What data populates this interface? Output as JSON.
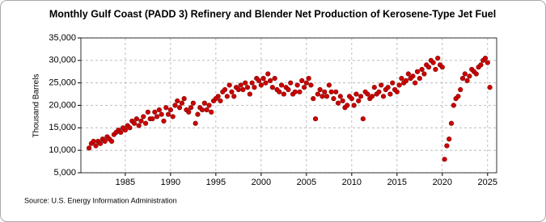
{
  "chart_data": {
    "type": "scatter",
    "title": "Monthly Gulf Coast (PADD 3) Refinery and Blender Net Production of Kerosene-Type Jet Fuel",
    "y_label": "Thousand Barrels",
    "source": "Source: U.S. Energy Information Administration",
    "xlim": [
      1980.1,
      2026
    ],
    "xticks": [
      1985,
      1990,
      1995,
      2000,
      2005,
      2010,
      2015,
      2020,
      2025
    ],
    "ylim": [
      5000,
      35000
    ],
    "yticks": [
      {
        "value": 5000,
        "label": "5,000"
      },
      {
        "value": 10000,
        "label": "10,000"
      },
      {
        "value": 15000,
        "label": "15,000"
      },
      {
        "value": 20000,
        "label": "20,000"
      },
      {
        "value": 25000,
        "label": "25,000"
      },
      {
        "value": 30000,
        "label": "30,000"
      },
      {
        "value": 35000,
        "label": "35,000"
      }
    ],
    "grid": true,
    "series": [
      {
        "color": "#cc0000",
        "x": [
          1981,
          1981.25,
          1981.5,
          1981.75,
          1982,
          1982.25,
          1982.5,
          1982.75,
          1983,
          1983.25,
          1983.5,
          1983.75,
          1984,
          1984.25,
          1984.5,
          1984.75,
          1985,
          1985.25,
          1985.5,
          1985.75,
          1986,
          1986.25,
          1986.5,
          1986.75,
          1987,
          1987.25,
          1987.5,
          1987.75,
          1988,
          1988.25,
          1988.5,
          1988.75,
          1989,
          1989.25,
          1989.5,
          1989.75,
          1990,
          1990.25,
          1990.5,
          1990.75,
          1991,
          1991.25,
          1991.5,
          1991.75,
          1992,
          1992.25,
          1992.5,
          1992.75,
          1993,
          1993.25,
          1993.5,
          1993.75,
          1994,
          1994.25,
          1994.5,
          1994.75,
          1995,
          1995.25,
          1995.5,
          1995.75,
          1996,
          1996.25,
          1996.5,
          1996.75,
          1997,
          1997.25,
          1997.5,
          1997.75,
          1998,
          1998.25,
          1998.5,
          1998.75,
          1999,
          1999.25,
          1999.5,
          1999.75,
          2000,
          2000.25,
          2000.5,
          2000.75,
          2001,
          2001.25,
          2001.5,
          2001.75,
          2002,
          2002.25,
          2002.5,
          2002.75,
          2003,
          2003.25,
          2003.5,
          2003.75,
          2004,
          2004.25,
          2004.5,
          2004.75,
          2005,
          2005.25,
          2005.5,
          2005.75,
          2006,
          2006.25,
          2006.5,
          2006.75,
          2007,
          2007.25,
          2007.5,
          2007.75,
          2008,
          2008.25,
          2008.5,
          2008.75,
          2009,
          2009.25,
          2009.5,
          2009.75,
          2010,
          2010.25,
          2010.5,
          2010.75,
          2011,
          2011.25,
          2011.5,
          2011.75,
          2012,
          2012.25,
          2012.5,
          2012.75,
          2013,
          2013.25,
          2013.5,
          2013.75,
          2014,
          2014.25,
          2014.5,
          2014.75,
          2015,
          2015.25,
          2015.5,
          2015.75,
          2016,
          2016.25,
          2016.5,
          2016.75,
          2017,
          2017.25,
          2017.5,
          2017.75,
          2018,
          2018.25,
          2018.5,
          2018.75,
          2019,
          2019.25,
          2019.5,
          2019.75,
          2020,
          2020.25,
          2020.5,
          2020.75,
          2021,
          2021.25,
          2021.5,
          2021.75,
          2022,
          2022.25,
          2022.5,
          2022.75,
          2023,
          2023.25,
          2023.5,
          2023.75,
          2024,
          2024.25,
          2024.5,
          2024.75,
          2025,
          2025.25
        ],
        "values": [
          10500,
          11500,
          12000,
          11000,
          12000,
          11500,
          12500,
          12000,
          13000,
          12500,
          12000,
          13500,
          14000,
          14500,
          14000,
          15000,
          14500,
          15500,
          15000,
          16500,
          16000,
          17000,
          15500,
          16500,
          17500,
          16000,
          18500,
          17000,
          17000,
          18500,
          17500,
          19000,
          18000,
          16500,
          19500,
          18000,
          19000,
          17500,
          20000,
          21000,
          19500,
          20500,
          21500,
          19000,
          18500,
          19500,
          20500,
          16000,
          18000,
          19500,
          19000,
          20500,
          19000,
          20000,
          18500,
          21000,
          21500,
          22000,
          21000,
          23000,
          23500,
          22000,
          24500,
          23000,
          22000,
          24000,
          23500,
          24500,
          23500,
          25000,
          24000,
          22500,
          25000,
          24000,
          26000,
          25500,
          24500,
          26000,
          25000,
          27000,
          25500,
          24000,
          26000,
          23500,
          23000,
          24500,
          22500,
          24000,
          23500,
          25000,
          22500,
          23000,
          24500,
          23000,
          25500,
          24000,
          25000,
          26000,
          24500,
          21500,
          17000,
          22500,
          23500,
          22000,
          23000,
          22000,
          24500,
          23000,
          21500,
          23000,
          20500,
          22000,
          21000,
          19500,
          20000,
          22000,
          21500,
          20000,
          22500,
          21000,
          22000,
          17000,
          23000,
          22500,
          21500,
          22000,
          24000,
          22500,
          23000,
          24500,
          22000,
          23500,
          24000,
          22500,
          25000,
          23500,
          23000,
          24500,
          26000,
          25000,
          25500,
          27000,
          26000,
          26500,
          25000,
          27500,
          26000,
          28000,
          27000,
          29000,
          28500,
          30000,
          29500,
          28000,
          30500,
          29000,
          28500,
          8000,
          11000,
          12500,
          16000,
          20000,
          21500,
          22000,
          23500,
          26000,
          27000,
          25500,
          26500,
          28000,
          27500,
          27000,
          28500,
          29000,
          30000,
          30500,
          29500,
          24000
        ]
      }
    ]
  }
}
